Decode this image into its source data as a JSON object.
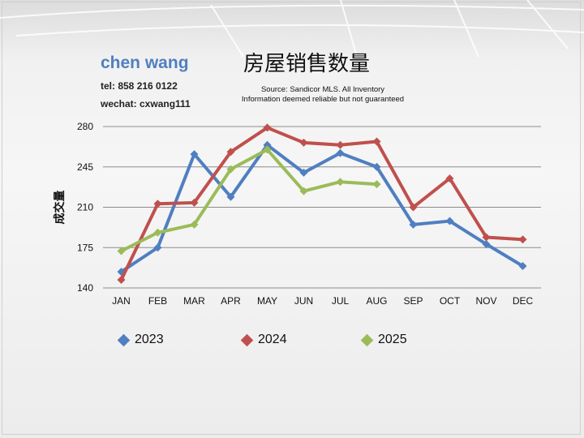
{
  "author": {
    "name": "chen wang",
    "tel": "tel: 858 216 0122",
    "wechat": "wechat: cxwang111"
  },
  "source_lines": [
    "Source: Sandicor MLS. All Inventory",
    "Information deemed reliable but not guaranteed"
  ],
  "chart_data": {
    "type": "line",
    "title": "房屋销售数量",
    "xlabel": "",
    "ylabel": "成交量",
    "categories": [
      "JAN",
      "FEB",
      "MAR",
      "APR",
      "MAY",
      "JUN",
      "JUL",
      "AUG",
      "SEP",
      "OCT",
      "NOV",
      "DEC"
    ],
    "ylim": [
      140,
      280
    ],
    "yticks": [
      140,
      175,
      210,
      245,
      280
    ],
    "grid": true,
    "legend_position": "bottom",
    "series": [
      {
        "name": "2023",
        "color": "#4f7fc1",
        "values": [
          154,
          175,
          256,
          219,
          264,
          240,
          257,
          245,
          195,
          198,
          178,
          159
        ]
      },
      {
        "name": "2024",
        "color": "#c0504d",
        "values": [
          147,
          213,
          214,
          258,
          279,
          266,
          264,
          267,
          210,
          235,
          184,
          182
        ]
      },
      {
        "name": "2025",
        "color": "#9bbb59",
        "values": [
          172,
          188,
          195,
          243,
          260,
          224,
          232,
          230,
          null,
          null,
          null,
          null
        ]
      }
    ]
  }
}
